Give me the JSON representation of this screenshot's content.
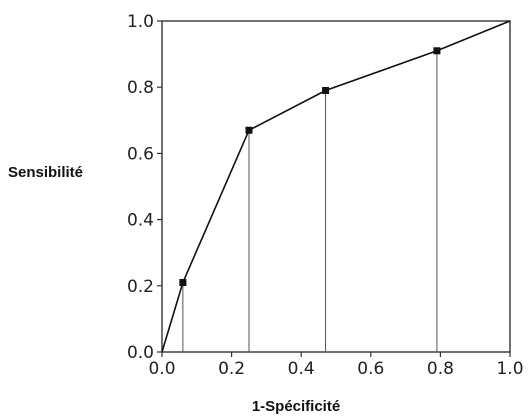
{
  "chart_data": {
    "type": "line",
    "xlabel": "1-Spécificité",
    "ylabel": "Sensibilité",
    "xlim": [
      0,
      1
    ],
    "ylim": [
      0,
      1
    ],
    "x_ticks": [
      "0.0",
      "0.2",
      "0.4",
      "0.6",
      "0.8",
      "1.0"
    ],
    "y_ticks": [
      "0.0",
      "0.2",
      "0.4",
      "0.6",
      "0.8",
      "1.0"
    ],
    "grid": false,
    "legend": "none",
    "series": [
      {
        "x": [
          0,
          0.06,
          0.25,
          0.47,
          0.79,
          1.0
        ],
        "y": [
          0,
          0.21,
          0.67,
          0.79,
          0.91,
          1.0
        ]
      }
    ],
    "markers": [
      {
        "x": 0.06,
        "y": 0.21
      },
      {
        "x": 0.25,
        "y": 0.67
      },
      {
        "x": 0.47,
        "y": 0.79
      },
      {
        "x": 0.79,
        "y": 0.91
      }
    ],
    "colors": {
      "line": "#111111",
      "marker": "#111111",
      "axes": "#333333",
      "drop_lines": "#555555"
    }
  }
}
